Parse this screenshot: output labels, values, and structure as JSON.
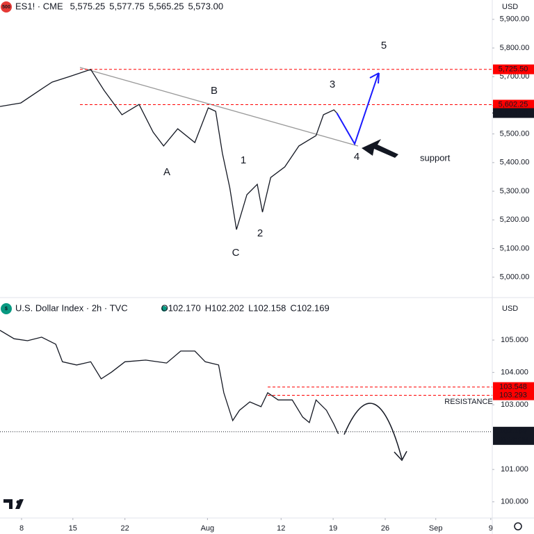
{
  "chart_data": [
    {
      "type": "line",
      "symbol_badge": "500",
      "title": "ES1! · CME",
      "ohlc": [
        "5,575.25",
        "5,577.75",
        "5,565.25",
        "5,573.00"
      ],
      "currency": "USD",
      "xlim": [
        -2.9,
        63.3
      ],
      "ylim": [
        4936,
        5919
      ],
      "yticks": [
        {
          "value": 5900,
          "label": "5,900.00"
        },
        {
          "value": 5800,
          "label": "5,800.00"
        },
        {
          "value": 5700,
          "label": "5,700.00"
        },
        {
          "value": 5600,
          "label": "5,600.00"
        },
        {
          "value": 5500,
          "label": "5,500.00"
        },
        {
          "value": 5400,
          "label": "5,400.00"
        },
        {
          "value": 5300,
          "label": "5,300.00"
        },
        {
          "value": 5200,
          "label": "5,200.00"
        },
        {
          "value": 5100,
          "label": "5,100.00"
        },
        {
          "value": 5000,
          "label": "5,000.00"
        }
      ],
      "series": [
        {
          "name": "ES1!",
          "color": "#131722",
          "x": [
            -2.9,
            -0.1,
            2.7,
            4.1,
            6.4,
            9.3,
            11.1,
            13.5,
            15.8,
            17.7,
            19.1,
            21.0,
            23.3,
            25.1,
            26.1,
            27.0,
            28.0,
            28.9,
            30.3,
            31.7,
            32.4,
            33.5,
            35.4,
            37.3,
            39.6,
            40.6,
            42.0,
            42.4
          ],
          "values": [
            5596,
            5608,
            5657,
            5681,
            5700,
            5725,
            5652,
            5567,
            5603,
            5506,
            5458,
            5518,
            5470,
            5591,
            5579,
            5433,
            5312,
            5166,
            5288,
            5324,
            5227,
            5348,
            5385,
            5458,
            5494,
            5567,
            5584,
            5573
          ]
        },
        {
          "name": "Projection",
          "color": "#1a1aff",
          "x": [
            42.4,
            44.8,
            48.0
          ],
          "values": [
            5573,
            5465,
            5713
          ]
        }
      ],
      "levels": [
        {
          "value": 5725.5,
          "label": "5,725.50",
          "color": "#ff0000"
        },
        {
          "value": 5602.25,
          "label": "5,602.25",
          "color": "#ff0000"
        }
      ],
      "last_price": {
        "value": 5573,
        "label": "5,573.00"
      },
      "annotations": [
        "A",
        "B",
        "C",
        "1",
        "2",
        "3",
        "4",
        "5",
        "support"
      ]
    },
    {
      "type": "line",
      "symbol_badge": "$",
      "title": "U.S. Dollar Index · 2h · TVC",
      "ohlc": [
        "O102.170",
        "H102.202",
        "L102.158",
        "C102.169"
      ],
      "currency": "USD",
      "xlim": [
        -2.9,
        63.3
      ],
      "ylim": [
        99.5,
        106.27
      ],
      "yticks": [
        {
          "value": 105,
          "label": "105.000"
        },
        {
          "value": 104,
          "label": "104.000"
        },
        {
          "value": 103,
          "label": "103.000"
        },
        {
          "value": 101,
          "label": "101.000"
        },
        {
          "value": 100,
          "label": "100.000"
        }
      ],
      "xticks": [
        {
          "value": 0.0,
          "label": "8"
        },
        {
          "value": 6.9,
          "label": "15"
        },
        {
          "value": 13.9,
          "label": "22"
        },
        {
          "value": 25.0,
          "label": "Aug"
        },
        {
          "value": 34.9,
          "label": "12"
        },
        {
          "value": 41.9,
          "label": "19"
        },
        {
          "value": 48.9,
          "label": "26"
        },
        {
          "value": 55.7,
          "label": "Sep"
        },
        {
          "value": 63.1,
          "label": "9"
        }
      ],
      "series": [
        {
          "name": "DXY",
          "color": "#131722",
          "x": [
            -2.9,
            -1.0,
            0.8,
            2.7,
            4.6,
            5.5,
            7.4,
            9.3,
            10.7,
            12.1,
            13.9,
            16.7,
            19.5,
            21.4,
            23.3,
            24.7,
            26.5,
            27.2,
            28.4,
            29.3,
            30.7,
            32.2,
            33.1,
            34.5,
            36.4,
            37.8,
            38.7,
            39.6,
            41.0,
            42.0,
            42.6
          ],
          "values": [
            105.3,
            105.04,
            104.98,
            105.09,
            104.87,
            104.33,
            104.23,
            104.33,
            103.8,
            104.01,
            104.33,
            104.38,
            104.29,
            104.66,
            104.66,
            104.33,
            104.23,
            103.37,
            102.51,
            102.83,
            103.09,
            102.94,
            103.37,
            103.15,
            103.15,
            102.62,
            102.45,
            103.15,
            102.83,
            102.4,
            102.1
          ]
        }
      ],
      "levels": [
        {
          "value": 103.548,
          "label": "103.548",
          "color": "#ff0000"
        },
        {
          "value": 103.293,
          "label": "103.293",
          "color": "#ff0000"
        }
      ],
      "last_price": {
        "value": 102.169,
        "label": "102.169",
        "countdown": "01:28:39"
      },
      "annotations": [
        "RESISTANCE"
      ]
    }
  ]
}
